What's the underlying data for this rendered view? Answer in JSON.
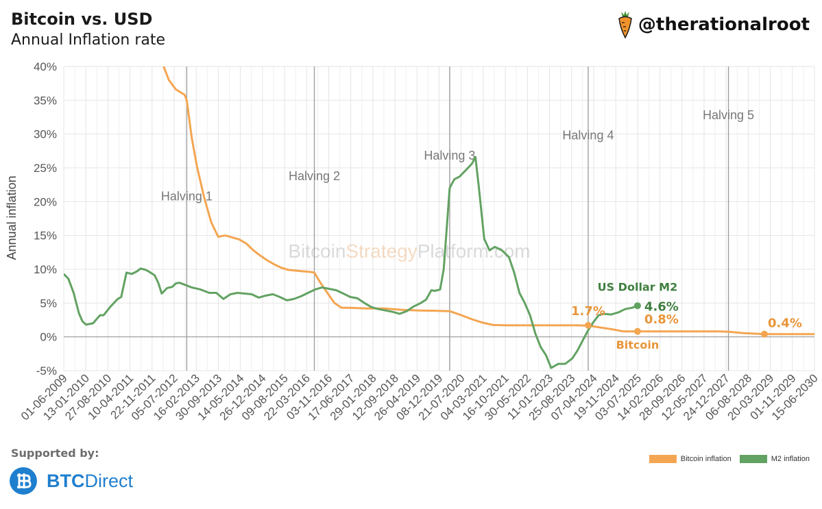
{
  "header": {
    "title": "Bitcoin vs. USD",
    "subtitle": "Annual Inflation rate",
    "handle": "@therationalroot"
  },
  "footer": {
    "supported_label": "Supported by:",
    "brand_bold": "BTC",
    "brand_rest": "Direct"
  },
  "colors": {
    "bitcoin": "#f4a551",
    "m2": "#62a262",
    "label_orange": "#e8953a",
    "label_green": "#3f7f3f"
  },
  "chart_data": {
    "type": "line",
    "title": "Bitcoin vs. USD Annual Inflation rate",
    "xlabel": "",
    "ylabel": "Annual inflation",
    "ylim": [
      -5,
      40
    ],
    "yticks": [
      -5,
      0,
      5,
      10,
      15,
      20,
      25,
      30,
      35,
      40
    ],
    "ytick_labels": [
      "-5%",
      "0%",
      "5%",
      "10%",
      "15%",
      "20%",
      "25%",
      "30%",
      "35%",
      "40%"
    ],
    "xlim": [
      2009.42,
      2030.72
    ],
    "xtick_labels": [
      "01-06-2009",
      "13-01-2010",
      "27-08-2010",
      "10-04-2011",
      "22-11-2011",
      "05-07-2012",
      "16-02-2013",
      "30-09-2013",
      "14-05-2014",
      "26-12-2014",
      "09-08-2015",
      "22-03-2016",
      "03-11-2016",
      "17-06-2017",
      "29-01-2018",
      "12-09-2018",
      "26-04-2019",
      "08-12-2019",
      "21-07-2020",
      "04-03-2021",
      "16-10-2021",
      "30-05-2022",
      "11-01-2023",
      "25-08-2023",
      "07-04-2024",
      "19-11-2024",
      "03-07-2025",
      "14-02-2026",
      "28-09-2026",
      "12-05-2027",
      "24-12-2027",
      "06-08-2028",
      "20-03-2029",
      "01-11-2029",
      "15-06-2030"
    ],
    "watermark": {
      "part1": "Bitcoin",
      "part2": "Strategy",
      "part3": "Platform.com"
    },
    "halvings": [
      {
        "label": "Halving 1",
        "x": 2012.91,
        "label_y": 20.2
      },
      {
        "label": "Halving 2",
        "x": 2016.53,
        "label_y": 23.2
      },
      {
        "label": "Halving 3",
        "x": 2020.37,
        "label_y": 26.2
      },
      {
        "label": "Halving 4",
        "x": 2024.3,
        "label_y": 29.2
      },
      {
        "label": "Halving 5",
        "x": 2028.28,
        "label_y": 32.2
      }
    ],
    "series": [
      {
        "name": "Bitcoin inflation",
        "color": "#f4a551",
        "x": [
          2012.24,
          2012.4,
          2012.6,
          2012.85,
          2012.91,
          2013.05,
          2013.2,
          2013.4,
          2013.6,
          2013.8,
          2014.0,
          2014.2,
          2014.4,
          2014.6,
          2014.8,
          2015.0,
          2015.2,
          2015.4,
          2015.6,
          2015.8,
          2016.0,
          2016.2,
          2016.4,
          2016.53,
          2016.7,
          2016.9,
          2017.1,
          2017.3,
          2017.5,
          2018.0,
          2018.5,
          2019.0,
          2019.5,
          2020.0,
          2020.37,
          2020.7,
          2021.0,
          2021.3,
          2021.6,
          2022.0,
          2023.0,
          2024.0,
          2024.3,
          2024.5,
          2025.0,
          2025.3,
          2026.0,
          2027.0,
          2028.0,
          2028.28,
          2028.7,
          2029.3,
          2030.0,
          2030.72
        ],
        "y": [
          40.2,
          38.0,
          36.6,
          35.8,
          35.0,
          29.5,
          25.2,
          20.7,
          17.0,
          14.8,
          15.0,
          14.7,
          14.4,
          13.8,
          12.8,
          12.0,
          11.3,
          10.7,
          10.2,
          9.9,
          9.8,
          9.7,
          9.6,
          9.5,
          8.0,
          6.5,
          5.0,
          4.3,
          4.3,
          4.2,
          4.2,
          4.0,
          3.9,
          3.85,
          3.8,
          3.2,
          2.6,
          2.1,
          1.75,
          1.7,
          1.7,
          1.7,
          1.65,
          1.5,
          1.1,
          0.8,
          0.8,
          0.8,
          0.8,
          0.75,
          0.55,
          0.4,
          0.4,
          0.4
        ]
      },
      {
        "name": "M2 inflation",
        "color": "#62a262",
        "x": [
          2009.42,
          2009.55,
          2009.7,
          2009.85,
          2009.95,
          2010.05,
          2010.15,
          2010.25,
          2010.35,
          2010.45,
          2010.55,
          2010.75,
          2010.95,
          2011.05,
          2011.2,
          2011.35,
          2011.5,
          2011.6,
          2011.75,
          2011.85,
          2012.0,
          2012.1,
          2012.2,
          2012.35,
          2012.5,
          2012.6,
          2012.7,
          2012.91,
          2013.05,
          2013.3,
          2013.55,
          2013.75,
          2013.95,
          2014.15,
          2014.35,
          2014.55,
          2014.75,
          2014.95,
          2015.15,
          2015.35,
          2015.55,
          2015.75,
          2015.95,
          2016.15,
          2016.35,
          2016.55,
          2016.75,
          2016.95,
          2017.15,
          2017.35,
          2017.55,
          2017.75,
          2017.95,
          2018.15,
          2018.35,
          2018.55,
          2018.75,
          2018.95,
          2019.15,
          2019.35,
          2019.55,
          2019.7,
          2019.85,
          2019.95,
          2020.1,
          2020.2,
          2020.3,
          2020.37,
          2020.5,
          2020.65,
          2020.8,
          2021.0,
          2021.1,
          2021.2,
          2021.35,
          2021.5,
          2021.65,
          2021.85,
          2022.05,
          2022.2,
          2022.35,
          2022.5,
          2022.65,
          2022.8,
          2022.95,
          2023.1,
          2023.25,
          2023.45,
          2023.65,
          2023.85,
          2024.0,
          2024.15,
          2024.3,
          2024.45,
          2024.6,
          2024.75,
          2024.95,
          2025.15,
          2025.35,
          2025.55,
          2025.7
        ],
        "y": [
          9.3,
          8.6,
          6.5,
          3.5,
          2.3,
          1.8,
          1.9,
          2.0,
          2.6,
          3.2,
          3.2,
          4.5,
          5.6,
          5.9,
          9.5,
          9.3,
          9.7,
          10.1,
          9.9,
          9.6,
          9.1,
          8.0,
          6.4,
          7.2,
          7.4,
          7.9,
          8.0,
          7.6,
          7.3,
          7.0,
          6.5,
          6.5,
          5.6,
          6.3,
          6.5,
          6.4,
          6.3,
          5.8,
          6.1,
          6.3,
          5.9,
          5.4,
          5.6,
          6.0,
          6.5,
          7.0,
          7.3,
          7.1,
          6.9,
          6.4,
          5.9,
          5.7,
          5.0,
          4.4,
          4.1,
          3.9,
          3.7,
          3.4,
          3.8,
          4.5,
          5.0,
          5.5,
          6.9,
          6.8,
          7.0,
          10.0,
          17.0,
          22.0,
          23.3,
          23.7,
          24.5,
          25.6,
          26.6,
          22.0,
          14.5,
          12.8,
          13.3,
          12.8,
          11.8,
          9.5,
          6.5,
          5.0,
          3.2,
          0.5,
          -1.5,
          -2.7,
          -4.6,
          -4.0,
          -4.0,
          -3.2,
          -2.0,
          -0.5,
          1.0,
          2.2,
          3.2,
          3.4,
          3.3,
          3.6,
          4.1,
          4.3,
          4.6
        ]
      }
    ],
    "annotations": [
      {
        "text": "1.7%",
        "series": "Bitcoin inflation",
        "x": 2024.3,
        "y": 1.7
      },
      {
        "text": "0.8%",
        "series": "Bitcoin inflation",
        "x": 2025.7,
        "y": 0.8
      },
      {
        "text": "0.4%",
        "series": "Bitcoin inflation",
        "x": 2029.3,
        "y": 0.4
      },
      {
        "text": "4.6%",
        "series": "M2 inflation",
        "x": 2025.7,
        "y": 4.6
      },
      {
        "text": "US Dollar M2",
        "series": "M2 inflation"
      },
      {
        "text": "Bitcoin",
        "series": "Bitcoin inflation"
      }
    ],
    "legend": [
      "Bitcoin inflation",
      "M2 inflation"
    ],
    "legend_position": "bottom-right",
    "grid": true
  }
}
